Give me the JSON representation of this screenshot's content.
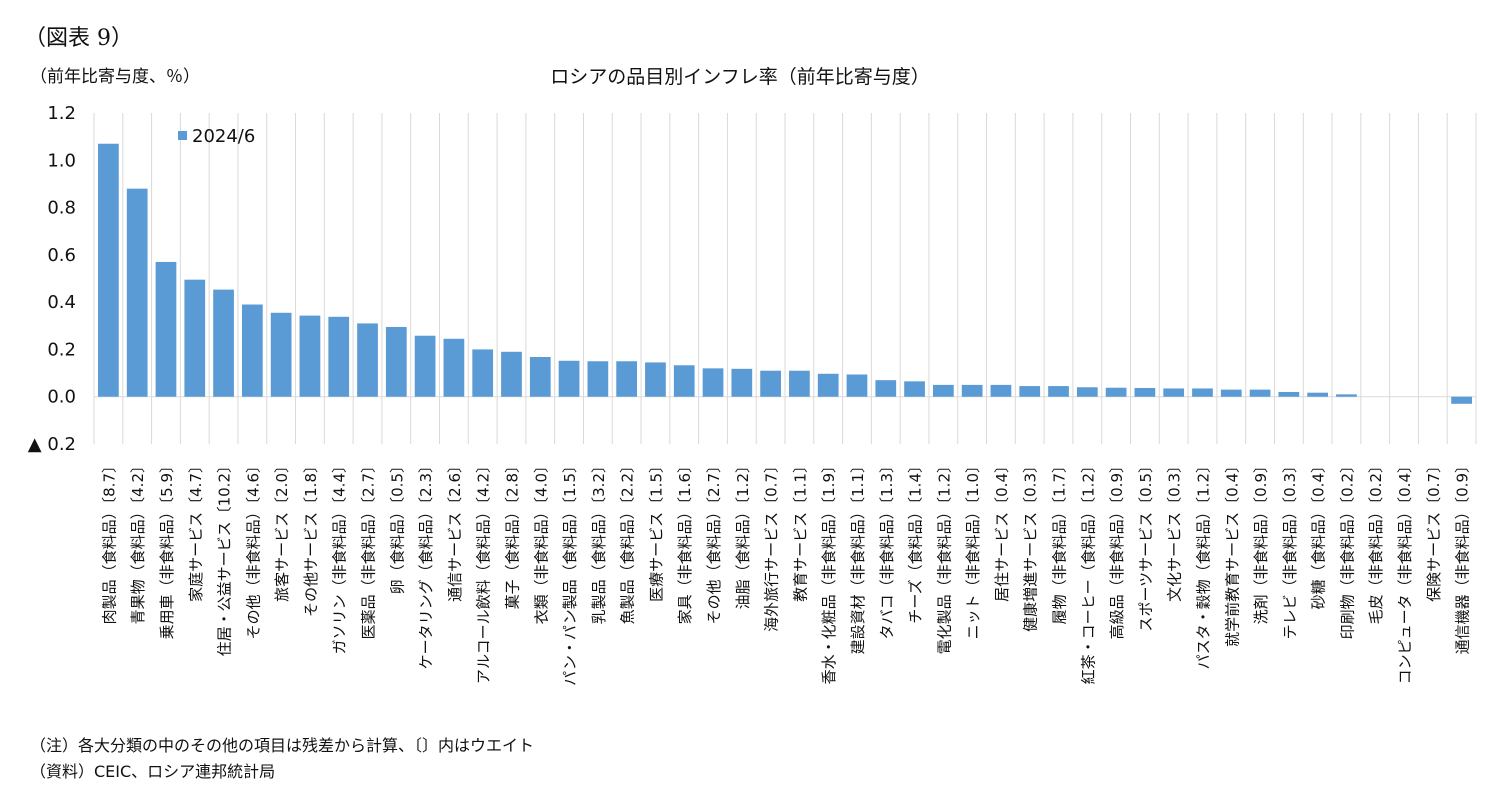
{
  "figure_label": "（図表 9）",
  "unit_label": "（前年比寄与度、％）",
  "notes": [
    "（注）各大分類の中のその他の項目は残差から計算、〔〕内はウエイト",
    "（資料）CEIC、ロシア連邦統計局"
  ],
  "chart_data": {
    "type": "bar",
    "title": "ロシアの品目別インフレ率（前年比寄与度）",
    "xlabel": "",
    "ylabel": "",
    "ylim": [
      -0.2,
      1.2
    ],
    "yticks": [
      1.2,
      1.0,
      0.8,
      0.6,
      0.4,
      0.2,
      0.0,
      -0.2
    ],
    "ytick_labels": [
      "1.2",
      "1.0",
      "0.8",
      "0.6",
      "0.4",
      "0.2",
      "0.0",
      "▲ 0.2"
    ],
    "grid": "vertical",
    "legend": "top-left",
    "bar_color": "#5b9bd5",
    "series": [
      {
        "name": "2024/6",
        "values": [
          1.07,
          0.88,
          0.57,
          0.495,
          0.453,
          0.39,
          0.355,
          0.343,
          0.338,
          0.31,
          0.295,
          0.258,
          0.245,
          0.2,
          0.19,
          0.168,
          0.152,
          0.15,
          0.15,
          0.145,
          0.133,
          0.12,
          0.118,
          0.11,
          0.11,
          0.097,
          0.094,
          0.07,
          0.065,
          0.05,
          0.05,
          0.05,
          0.045,
          0.045,
          0.04,
          0.038,
          0.037,
          0.035,
          0.035,
          0.03,
          0.03,
          0.02,
          0.017,
          0.01,
          0.0,
          0.0,
          0.0,
          -0.03
        ]
      }
    ],
    "categories": [
      "肉製品（食料品）〔8.7〕",
      "青果物（食料品）〔4.2〕",
      "乗用車（非食料品）〔5.9〕",
      "家庭サービス〔4.7〕",
      "住居・公益サービス〔10.2〕",
      "その他（非食料品）〔4.6〕",
      "旅客サービス〔2.0〕",
      "その他サービス〔1.8〕",
      "ガソリン（非食料品）〔4.4〕",
      "医薬品（非食料品）〔2.7〕",
      "卵（食料品）〔0.5〕",
      "ケータリング（食料品）〔2.3〕",
      "通信サービス〔2.6〕",
      "アルコール飲料（食料品）〔4.2〕",
      "菓子（食料品）〔2.8〕",
      "衣類（非食料品）〔4.0〕",
      "パン・パン製品（食料品）〔1.5〕",
      "乳製品（食料品）〔3.2〕",
      "魚製品（食料品）〔2.2〕",
      "医療サービス〔1.5〕",
      "家具（非食料品）〔1.6〕",
      "その他（食料品）〔2.7〕",
      "油脂（食料品）〔1.2〕",
      "海外旅行サービス〔0.7〕",
      "教育サービス〔1.1〕",
      "香水・化粧品（非食料品）〔1.9〕",
      "建設資材（非食料品）〔1.1〕",
      "タバコ（非食料品）〔1.3〕",
      "チーズ（食料品）〔1.4〕",
      "電化製品（非食料品）〔1.2〕",
      "ニット（非食料品）〔1.0〕",
      "居住サービス〔0.4〕",
      "健康増進サービス〔0.3〕",
      "履物（非食料品）〔1.7〕",
      "紅茶・コーヒー（食料品）〔1.2〕",
      "高級品（非食料品）〔0.9〕",
      "スポーツサービス〔0.5〕",
      "文化サービス〔0.3〕",
      "パスタ・穀物（食料品）〔1.2〕",
      "就学前教育サービス〔0.4〕",
      "洗剤（非食料品）〔0.9〕",
      "テレビ（非食料品）〔0.3〕",
      "砂糖（食料品）〔0.4〕",
      "印刷物（非食料品）〔0.2〕",
      "毛皮（非食料品）〔0.2〕",
      "コンピュータ（非食料品）〔0.4〕",
      "保険サービス〔0.7〕",
      "通信機器（非食料品）〔0.9〕"
    ]
  }
}
